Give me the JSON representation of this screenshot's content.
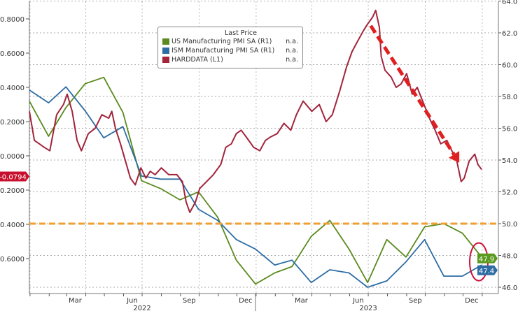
{
  "chart_data": {
    "type": "line",
    "legend": {
      "title": "Last Price",
      "placement": "top-center",
      "entries": [
        {
          "name": "US Manufacturing PMI SA  (R1)",
          "value": "n.a.",
          "color": "#5a8a1e"
        },
        {
          "name": "ISM Manufacturing PMI SA  (R1)",
          "value": "n.a.",
          "color": "#2e6da4"
        },
        {
          "name": "HARDDATA  (L1)",
          "value": "n.a.",
          "color": "#a3243b"
        }
      ]
    },
    "x_range": [
      "2021-12-31",
      "2023-12-31"
    ],
    "x_ticks": [
      {
        "label": "Mar",
        "date": "2022-03-15"
      },
      {
        "label": "Jun",
        "date": "2022-06-15"
      },
      {
        "label": "Sep",
        "date": "2022-09-15"
      },
      {
        "label": "Dec",
        "date": "2022-12-15"
      },
      {
        "label": "Mar",
        "date": "2023-03-15"
      },
      {
        "label": "Jun",
        "date": "2023-06-15"
      },
      {
        "label": "Sep",
        "date": "2023-09-15"
      },
      {
        "label": "Dec",
        "date": "2023-12-15"
      }
    ],
    "year_labels": [
      {
        "label": "2022",
        "date": "2022-07-01"
      },
      {
        "label": "2023",
        "date": "2023-07-01"
      }
    ],
    "left_axis": {
      "range": [
        -0.78,
        0.91
      ],
      "ticks": [
        "0.8000",
        "0.6000",
        "0.4000",
        "0.2000",
        "0.0000",
        "-0.2000",
        "-0.4000",
        "-0.6000"
      ]
    },
    "right_axis": {
      "range": [
        45.6,
        64.3
      ],
      "ticks": [
        "64.0",
        "62.0",
        "60.0",
        "58.0",
        "56.0",
        "54.0",
        "52.0",
        "50.0",
        "48.0",
        "46.0"
      ]
    },
    "grid": true,
    "reference_line": {
      "axis": "right",
      "value": 50.0,
      "color": "#f0a030",
      "style": "dashed"
    },
    "last_value_labels": [
      {
        "series": "HARDDATA",
        "text": "-0.0794",
        "color": "#c8102e"
      },
      {
        "series": "US Manufacturing PMI",
        "text": "47.9",
        "color": "#5a9a1e"
      },
      {
        "series": "ISM Manufacturing PMI",
        "text": "47.4",
        "color": "#2e6da4"
      }
    ],
    "annotations": [
      {
        "type": "dashed-arrow",
        "color": "#e02020",
        "from": {
          "date": "2023-07-05",
          "value": 0.76
        },
        "to": {
          "date": "2023-11-25",
          "value": -0.04
        }
      },
      {
        "type": "ellipse",
        "color": "#d0103a",
        "around": {
          "date": "2023-12-31",
          "value_right": 47.6
        }
      }
    ],
    "series": [
      {
        "name": "US Manufacturing PMI SA",
        "axis": "right",
        "color": "#5a8a1e",
        "dates": [
          "2021-12-31",
          "2022-01-31",
          "2022-02-28",
          "2022-03-31",
          "2022-04-30",
          "2022-05-31",
          "2022-06-30",
          "2022-07-31",
          "2022-08-31",
          "2022-09-30",
          "2022-10-31",
          "2022-11-30",
          "2022-12-31",
          "2023-01-31",
          "2023-02-28",
          "2023-03-31",
          "2023-04-30",
          "2023-05-31",
          "2023-06-30",
          "2023-07-31",
          "2023-08-31",
          "2023-09-30",
          "2023-10-31",
          "2023-11-30",
          "2023-12-31"
        ],
        "values": [
          57.7,
          55.5,
          57.3,
          58.8,
          59.2,
          57.0,
          52.7,
          52.2,
          51.5,
          52.0,
          50.4,
          47.7,
          46.2,
          46.9,
          47.3,
          49.2,
          50.2,
          48.4,
          46.3,
          49.0,
          47.9,
          49.8,
          50.0,
          49.4,
          47.9
        ]
      },
      {
        "name": "ISM Manufacturing PMI SA",
        "axis": "right",
        "color": "#2e6da4",
        "dates": [
          "2021-12-31",
          "2022-01-31",
          "2022-02-28",
          "2022-03-31",
          "2022-04-30",
          "2022-05-31",
          "2022-06-30",
          "2022-07-31",
          "2022-08-31",
          "2022-09-30",
          "2022-10-31",
          "2022-11-30",
          "2022-12-31",
          "2023-01-31",
          "2023-02-28",
          "2023-03-31",
          "2023-04-30",
          "2023-05-31",
          "2023-06-30",
          "2023-07-31",
          "2023-08-31",
          "2023-09-30",
          "2023-10-31",
          "2023-11-30",
          "2023-12-31"
        ],
        "values": [
          58.4,
          57.6,
          58.6,
          57.1,
          55.4,
          56.1,
          53.0,
          52.8,
          52.8,
          50.9,
          50.2,
          49.0,
          48.4,
          47.4,
          47.7,
          46.3,
          47.1,
          46.9,
          46.0,
          46.4,
          47.6,
          49.0,
          46.7,
          46.7,
          47.4
        ]
      },
      {
        "name": "HARDDATA",
        "axis": "left",
        "color": "#a3243b",
        "dates": [
          "2021-12-31",
          "2022-01-08",
          "2022-01-16",
          "2022-01-24",
          "2022-02-02",
          "2022-02-13",
          "2022-02-24",
          "2022-03-02",
          "2022-03-10",
          "2022-03-18",
          "2022-03-25",
          "2022-04-05",
          "2022-04-16",
          "2022-04-27",
          "2022-05-08",
          "2022-05-13",
          "2022-05-19",
          "2022-05-27",
          "2022-06-04",
          "2022-06-12",
          "2022-06-20",
          "2022-06-29",
          "2022-07-07",
          "2022-07-14",
          "2022-07-22",
          "2022-08-01",
          "2022-08-13",
          "2022-08-26",
          "2022-09-04",
          "2022-09-10",
          "2022-09-16",
          "2022-09-25",
          "2022-10-02",
          "2022-10-13",
          "2022-10-24",
          "2022-11-05",
          "2022-11-13",
          "2022-11-22",
          "2022-11-30",
          "2022-12-08",
          "2022-12-20",
          "2022-12-28",
          "2023-01-07",
          "2023-01-16",
          "2023-01-24",
          "2023-02-04",
          "2023-02-15",
          "2023-02-26",
          "2023-03-07",
          "2023-03-18",
          "2023-04-01",
          "2023-04-13",
          "2023-04-24",
          "2023-05-04",
          "2023-05-16",
          "2023-05-27",
          "2023-06-05",
          "2023-06-14",
          "2023-06-23",
          "2023-06-30",
          "2023-07-08",
          "2023-07-13",
          "2023-07-19",
          "2023-07-22",
          "2023-07-28",
          "2023-08-07",
          "2023-08-15",
          "2023-08-23",
          "2023-09-01",
          "2023-09-10",
          "2023-09-18",
          "2023-09-29",
          "2023-10-09",
          "2023-10-17",
          "2023-10-26",
          "2023-11-05",
          "2023-11-13",
          "2023-11-21",
          "2023-11-28",
          "2023-12-03",
          "2023-12-11",
          "2023-12-20",
          "2023-12-25",
          "2023-12-31"
        ],
        "values": [
          0.26,
          0.09,
          0.07,
          0.05,
          0.03,
          0.24,
          0.3,
          0.36,
          0.26,
          0.09,
          0.03,
          0.13,
          0.16,
          0.24,
          0.22,
          0.26,
          0.16,
          0.07,
          -0.03,
          -0.13,
          -0.17,
          -0.07,
          -0.13,
          -0.09,
          -0.11,
          -0.07,
          -0.11,
          -0.11,
          -0.15,
          -0.27,
          -0.33,
          -0.27,
          -0.19,
          -0.15,
          -0.11,
          -0.05,
          0.05,
          0.07,
          0.13,
          0.15,
          0.09,
          0.05,
          0.03,
          0.09,
          0.11,
          0.13,
          0.19,
          0.15,
          0.24,
          0.32,
          0.26,
          0.3,
          0.2,
          0.24,
          0.38,
          0.52,
          0.61,
          0.67,
          0.73,
          0.77,
          0.81,
          0.85,
          0.75,
          0.58,
          0.5,
          0.46,
          0.4,
          0.42,
          0.48,
          0.36,
          0.4,
          0.3,
          0.21,
          0.15,
          0.07,
          0.09,
          0.03,
          -0.03,
          -0.15,
          -0.13,
          -0.03,
          0.01,
          -0.05,
          -0.0794
        ]
      }
    ]
  }
}
